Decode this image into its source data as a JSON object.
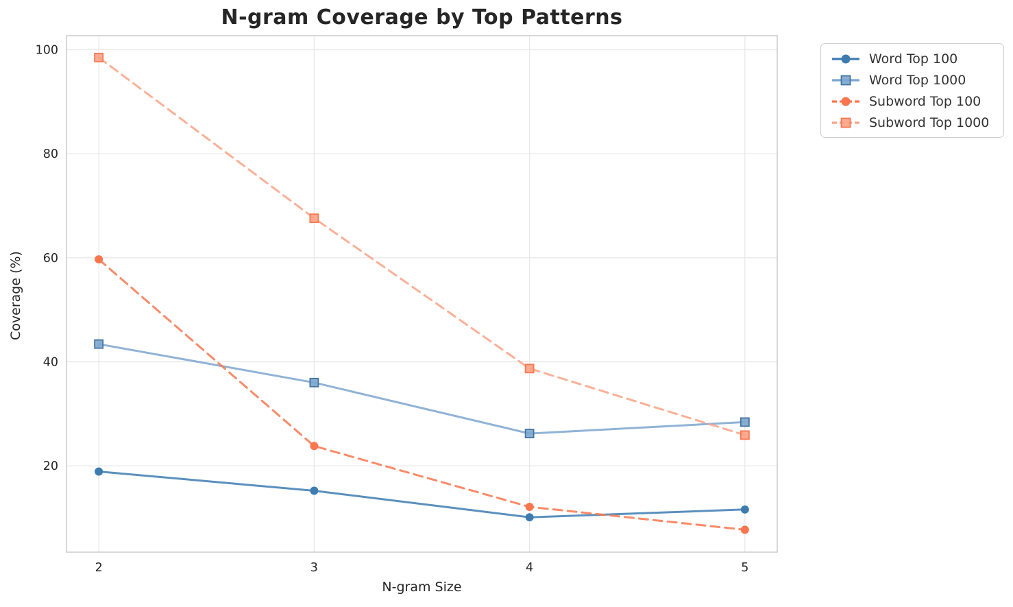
{
  "chart_data": {
    "type": "line",
    "title": "N-gram Coverage by Top Patterns",
    "xlabel": "N-gram Size",
    "ylabel": "Coverage (%)",
    "x": [
      2,
      3,
      4,
      5
    ],
    "xticks": [
      2,
      3,
      4,
      5
    ],
    "yticks": [
      20,
      40,
      60,
      80,
      100
    ],
    "xlim": [
      1.85,
      5.15
    ],
    "ylim": [
      3.4,
      102.7
    ],
    "grid": true,
    "legend_position": "upper-right-outside",
    "series": [
      {
        "name": "Word Top 100",
        "values": [
          18.9,
          15.2,
          10.1,
          11.6
        ],
        "color": "#3d7cb1",
        "marker": "circle",
        "linestyle": "solid",
        "edge": "#3d7cb1"
      },
      {
        "name": "Word Top 1000",
        "values": [
          43.4,
          36.0,
          26.2,
          28.4
        ],
        "color": "#7ca6cf",
        "marker": "square",
        "linestyle": "solid",
        "edge": "#45759f"
      },
      {
        "name": "Subword Top 100",
        "values": [
          59.7,
          23.8,
          12.1,
          7.7
        ],
        "color": "#f9764e",
        "marker": "circle",
        "linestyle": "dashed",
        "edge": "#f9764e"
      },
      {
        "name": "Subword Top 1000",
        "values": [
          98.5,
          67.6,
          38.7,
          25.9
        ],
        "color": "#fba285",
        "marker": "square",
        "linestyle": "dashed",
        "edge": "#f87850"
      }
    ],
    "colors": {
      "grid": "#e8e8e8",
      "spine": "#cccccc",
      "text": "#262626",
      "legend_border": "#cfcfcf",
      "background": "#ffffff"
    }
  }
}
